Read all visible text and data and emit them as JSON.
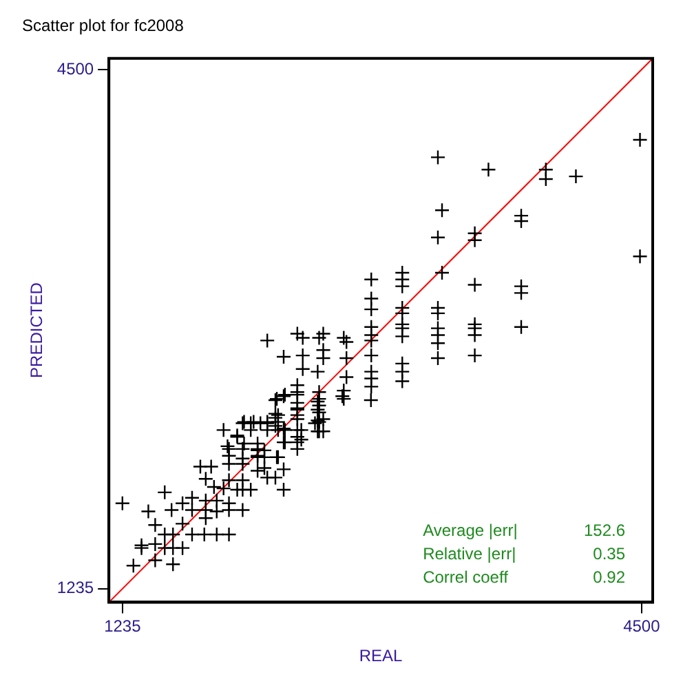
{
  "chart_data": {
    "type": "scatter",
    "title": "Scatter plot for fc2008",
    "xlabel": "REAL",
    "ylabel": "PREDICTED",
    "xlim": [
      1150,
      4570
    ],
    "ylim": [
      1150,
      4570
    ],
    "xticks": [
      1235,
      4500
    ],
    "yticks": [
      1235,
      4500
    ],
    "legend": false,
    "annotations": [
      "Average |err|",
      "152.6",
      "Relative |err|",
      "0.35",
      "Correl coeff",
      "0.92"
    ],
    "series": [
      {
        "marker": "cross",
        "color": "#000000",
        "x": [
          1235,
          1304,
          1398,
          1355,
          1355,
          1441,
          1441,
          1441,
          1501,
          1501,
          1501,
          1544,
          1553,
          1553,
          1553,
          1613,
          1613,
          1613,
          1673,
          1673,
          1673,
          1750,
          1828,
          1905,
          1725,
          1793,
          1759,
          1759,
          1759,
          1759,
          1811,
          1828,
          1828,
          1905,
          1905,
          1871,
          1905,
          1905,
          1905,
          1905,
          1991,
          1991,
          1991,
          1991,
          1991,
          1991,
          1957,
          1957,
          1871,
          2042,
          2042,
          1991,
          2042,
          2103,
          2085,
          2085,
          2085,
          2085,
          2128,
          2146,
          2197,
          2206,
          2249,
          2249,
          2146,
          2146,
          2197,
          2197,
          2197,
          2249,
          2249,
          2197,
          2249,
          2335,
          2335,
          2335,
          2335,
          2335,
          2335,
          2360,
          2360,
          2446,
          2463,
          2463,
          2463,
          2463,
          2498,
          2498,
          2618,
          2798,
          2146,
          2335,
          2369,
          2472,
          2498,
          2627,
          2644,
          2644,
          2800,
          2800,
          2800,
          2800,
          2800,
          2800,
          2800,
          2800,
          2800,
          2800,
          2995,
          2995,
          2995,
          2995,
          2995,
          2995,
          2995,
          2995,
          2995,
          2995,
          2995,
          2249,
          2369,
          2369,
          2498,
          2498,
          2463,
          2644,
          2627,
          2627,
          2472,
          2472,
          2472,
          2472,
          2472,
          2472,
          2335,
          2335,
          2335,
          2335,
          2335,
          2335,
          2257,
          2206,
          2214,
          2214,
          2214,
          2257,
          2257,
          2146,
          2060,
          2000,
          1957,
          2000,
          2085,
          2085,
          2128,
          2128,
          1896,
          2214,
          3219,
          3537,
          3898,
          3898,
          4087,
          4490,
          4490,
          3245,
          3743,
          3743,
          3219,
          3451,
          3451,
          3245,
          3451,
          3743,
          3743,
          3743,
          3451,
          3451,
          3451,
          3451,
          3219,
          3219,
          3219,
          3219,
          3219,
          3219
        ],
        "values": [
          1772,
          1380,
          1721,
          1508,
          1491,
          1636,
          1516,
          1414,
          1841,
          1576,
          1491,
          1730,
          1576,
          1491,
          1389,
          1772,
          1644,
          1491,
          1807,
          1730,
          1576,
          1576,
          1576,
          1576,
          2003,
          2003,
          1926,
          1789,
          1730,
          1679,
          1875,
          1789,
          1721,
          1772,
          1730,
          1866,
          1917,
          2114,
          2071,
          2020,
          2114,
          2054,
          2020,
          1917,
          1858,
          1730,
          1858,
          2190,
          2233,
          1858,
          2233,
          2276,
          2276,
          2276,
          2148,
          2114,
          2071,
          1977,
          1994,
          1934,
          1934,
          2062,
          1986,
          1858,
          2276,
          2233,
          2336,
          2310,
          2259,
          2242,
          2156,
          2421,
          2446,
          2455,
          2370,
          2327,
          2233,
          2190,
          2114,
          2233,
          2173,
          2276,
          2412,
          2361,
          2293,
          2225,
          2302,
          2225,
          2446,
          2421,
          2796,
          2839,
          2813,
          2813,
          2839,
          2813,
          2787,
          2685,
          3180,
          3060,
          2992,
          2881,
          2830,
          2796,
          2702,
          2600,
          2557,
          2506,
          3222,
          3180,
          3137,
          3001,
          2967,
          2898,
          2873,
          2822,
          2651,
          2600,
          2540,
          2694,
          2702,
          2617,
          2736,
          2685,
          2600,
          2566,
          2481,
          2429,
          2472,
          2429,
          2387,
          2344,
          2284,
          2225,
          2515,
          2472,
          2404,
          2361,
          2302,
          2156,
          2455,
          2429,
          2327,
          2284,
          2233,
          2233,
          2156,
          2284,
          2284,
          2284,
          2199,
          2148,
          2105,
          2062,
          2105,
          2062,
          2131,
          2062,
          3948,
          3871,
          3871,
          3811,
          3828,
          4058,
          3325,
          3615,
          3581,
          3547,
          3444,
          3470,
          3427,
          3222,
          3146,
          3137,
          3095,
          2881,
          2898,
          2873,
          2830,
          2702,
          3001,
          2967,
          2873,
          2830,
          2779,
          2685
        ]
      },
      {
        "type": "line",
        "color": "#ff0000",
        "x": [
          1150,
          4570
        ],
        "values": [
          1150,
          4570
        ]
      }
    ]
  }
}
